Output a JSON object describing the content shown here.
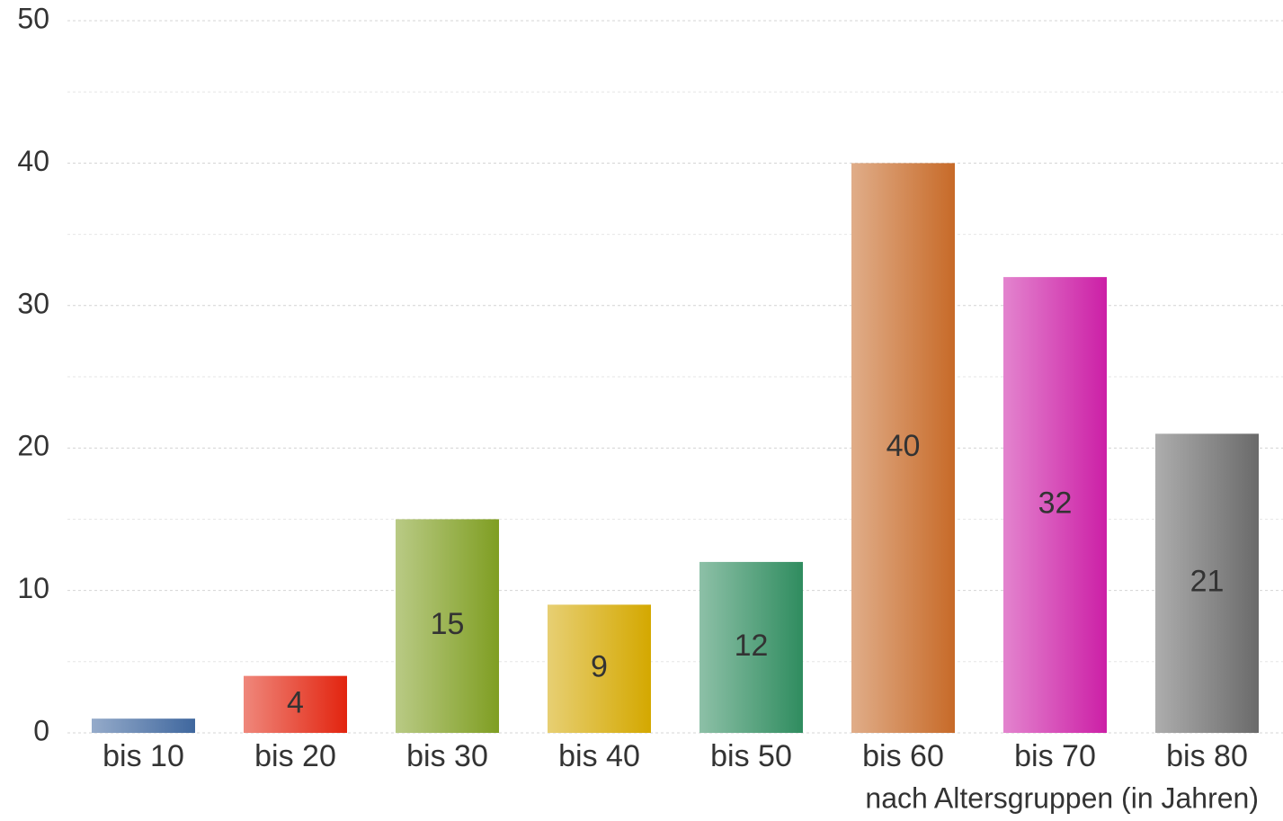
{
  "chart_data": {
    "type": "bar",
    "x_label": "nach Altersgruppen (in Jahren)",
    "categories": [
      "bis 10",
      "bis 20",
      "bis 30",
      "bis 40",
      "bis 50",
      "bis 60",
      "bis 70",
      "bis 80"
    ],
    "values": [
      1,
      4,
      15,
      9,
      12,
      40,
      32,
      21
    ],
    "value_labels": [
      null,
      "4",
      "15",
      "9",
      "12",
      "40",
      "32",
      "21"
    ],
    "colors": [
      "#3f679e",
      "#e2240f",
      "#7f9e22",
      "#d4a800",
      "#2f8c5f",
      "#c76a28",
      "#cc1fa6",
      "#6a6a6a"
    ],
    "ylim": [
      0,
      50
    ],
    "yticks": [
      0,
      10,
      20,
      30,
      40,
      50
    ],
    "grid": true
  }
}
